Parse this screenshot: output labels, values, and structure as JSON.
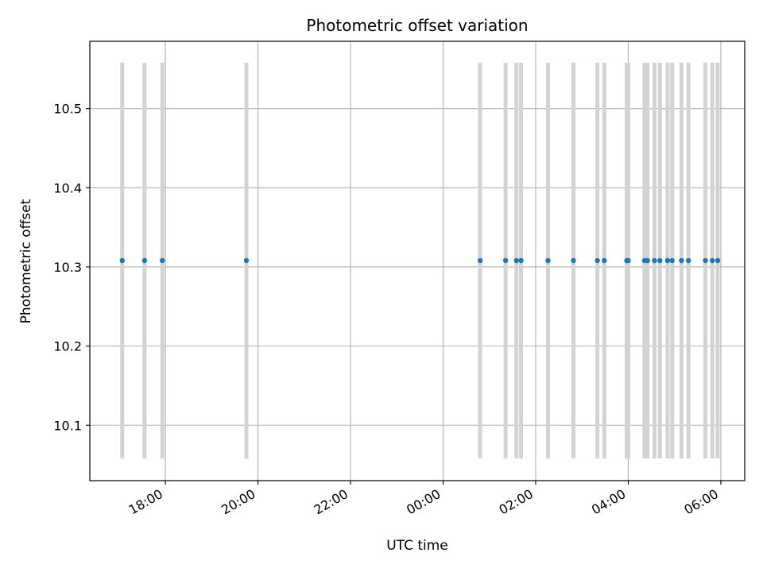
{
  "chart_data": {
    "type": "scatter",
    "title": "Photometric offset variation",
    "xlabel": "UTC time",
    "ylabel": "Photometric offset",
    "x_is_time": true,
    "x_tick_labels": [
      "18:00",
      "20:00",
      "22:00",
      "00:00",
      "02:00",
      "04:00",
      "06:00"
    ],
    "x_ticks": [
      "18:00",
      "20:00",
      "22:00",
      "24:00",
      "26:00",
      "28:00",
      "30:00"
    ],
    "xlim": [
      "16:22",
      "30:31"
    ],
    "y_ticks": [
      10.1,
      10.2,
      10.3,
      10.4,
      10.5
    ],
    "y_tick_labels": [
      "10.1",
      "10.2",
      "10.3",
      "10.4",
      "10.5"
    ],
    "ylim": [
      10.03,
      10.585
    ],
    "grid": true,
    "series": [
      {
        "values": [
          {
            "x": "17:04",
            "y": 10.308,
            "yerr": 0.25
          },
          {
            "x": "17:33",
            "y": 10.308,
            "yerr": 0.25
          },
          {
            "x": "17:56",
            "y": 10.308,
            "yerr": 0.25
          },
          {
            "x": "19:45",
            "y": 10.308,
            "yerr": 0.25
          },
          {
            "x": "24:48",
            "y": 10.308,
            "yerr": 0.25
          },
          {
            "x": "25:21",
            "y": 10.308,
            "yerr": 0.25
          },
          {
            "x": "25:35",
            "y": 10.308,
            "yerr": 0.25
          },
          {
            "x": "25:41",
            "y": 10.308,
            "yerr": 0.25
          },
          {
            "x": "26:16",
            "y": 10.308,
            "yerr": 0.25
          },
          {
            "x": "26:49",
            "y": 10.308,
            "yerr": 0.25
          },
          {
            "x": "27:20",
            "y": 10.308,
            "yerr": 0.25
          },
          {
            "x": "27:29",
            "y": 10.308,
            "yerr": 0.25
          },
          {
            "x": "27:58",
            "y": 10.308,
            "yerr": 0.25
          },
          {
            "x": "28:00",
            "y": 10.308,
            "yerr": 0.25
          },
          {
            "x": "28:21",
            "y": 10.308,
            "yerr": 0.25
          },
          {
            "x": "28:25",
            "y": 10.308,
            "yerr": 0.25
          },
          {
            "x": "28:34",
            "y": 10.308,
            "yerr": 0.25
          },
          {
            "x": "28:41",
            "y": 10.308,
            "yerr": 0.25
          },
          {
            "x": "28:51",
            "y": 10.308,
            "yerr": 0.25
          },
          {
            "x": "28:57",
            "y": 10.308,
            "yerr": 0.25
          },
          {
            "x": "29:09",
            "y": 10.308,
            "yerr": 0.25
          },
          {
            "x": "29:18",
            "y": 10.308,
            "yerr": 0.25
          },
          {
            "x": "29:40",
            "y": 10.308,
            "yerr": 0.25
          },
          {
            "x": "29:49",
            "y": 10.308,
            "yerr": 0.25
          },
          {
            "x": "29:56",
            "y": 10.308,
            "yerr": 0.25
          }
        ]
      }
    ],
    "colors": {
      "marker": "#1f77b4",
      "errorbar": "#d3d3d3",
      "grid": "#b0b0b0",
      "axes": "#000000"
    }
  }
}
